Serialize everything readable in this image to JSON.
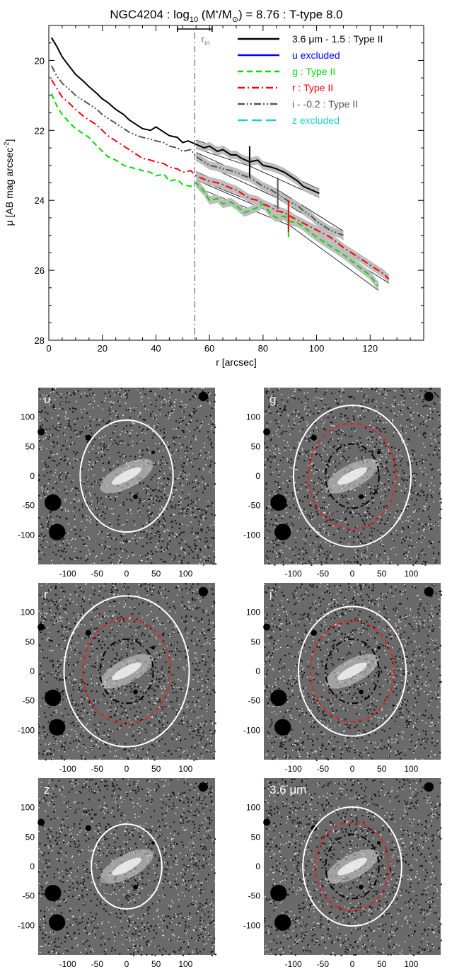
{
  "figure": {
    "title_parts": {
      "pre": "NGC4204 : log",
      "sub": "10",
      "mid": " (M",
      "star": "*",
      "slash": "/M",
      "sun": "⊙",
      "post": ") = 8.76 : T-type 8.0"
    }
  },
  "chart_data": [
    {
      "type": "line",
      "title": "NGC4204 : log10 (M*/M⊙) = 8.76 : T-type 8.0",
      "xlabel": "r [arcsec]",
      "ylabel_parts": {
        "pre": "μ [AB mag arcsec",
        "sup": "-2",
        "post": "]"
      },
      "xlim": [
        0,
        140
      ],
      "ylim": [
        28,
        19
      ],
      "y_inverted": true,
      "xticks": [
        0,
        20,
        40,
        60,
        80,
        100,
        120
      ],
      "yticks": [
        20,
        22,
        24,
        26,
        28
      ],
      "grid": false,
      "legend_position": "top-right",
      "annotations": {
        "r_in_label": "r",
        "r_in_sub": "in",
        "r_in_x": 54.5,
        "r_in_range": [
          48,
          61
        ]
      },
      "series": [
        {
          "name": "3.6 μm - 1.5 : Type II",
          "color": "#000000",
          "dash": "solid",
          "break_x": 75,
          "x": [
            1,
            3,
            5,
            8,
            10,
            13,
            15,
            18,
            20,
            22,
            25,
            28,
            30,
            32,
            35,
            38,
            40,
            43,
            45,
            48,
            50,
            52,
            55,
            58,
            60,
            63,
            65,
            68,
            70,
            72,
            75,
            78,
            80,
            83,
            85,
            88,
            90,
            93,
            95,
            98,
            101
          ],
          "y": [
            19.35,
            19.6,
            19.9,
            20.2,
            20.4,
            20.6,
            20.75,
            20.95,
            21.1,
            21.2,
            21.4,
            21.55,
            21.7,
            21.8,
            21.95,
            22.0,
            21.9,
            22.05,
            22.15,
            22.2,
            22.35,
            22.3,
            22.4,
            22.5,
            22.45,
            22.6,
            22.55,
            22.7,
            22.7,
            22.8,
            22.9,
            22.85,
            23.0,
            23.05,
            23.1,
            23.2,
            23.3,
            23.45,
            23.6,
            23.7,
            23.8
          ]
        },
        {
          "name": "u excluded",
          "color": "#0000ff",
          "dash": "solid",
          "x": [],
          "y": []
        },
        {
          "name": "g : Type II",
          "color": "#00dd00",
          "dash": "dashed",
          "break_x": 89.5,
          "x": [
            1,
            3,
            5,
            8,
            10,
            13,
            15,
            18,
            20,
            22,
            25,
            28,
            30,
            33,
            35,
            38,
            40,
            43,
            45,
            48,
            50,
            53,
            55,
            58,
            60,
            63,
            65,
            68,
            70,
            73,
            75,
            78,
            80,
            83,
            85,
            88,
            90,
            93,
            95,
            100,
            105,
            110,
            115,
            120,
            123
          ],
          "y": [
            20.95,
            21.3,
            21.55,
            21.8,
            21.95,
            22.1,
            22.2,
            22.45,
            22.6,
            22.75,
            22.85,
            23.0,
            23.05,
            23.1,
            23.15,
            23.2,
            23.3,
            23.25,
            23.45,
            23.4,
            23.55,
            23.6,
            23.5,
            23.75,
            24.0,
            23.95,
            24.1,
            24.05,
            24.15,
            24.35,
            24.3,
            24.2,
            24.1,
            24.4,
            24.5,
            24.45,
            24.6,
            24.65,
            24.75,
            25.05,
            25.3,
            25.55,
            25.85,
            26.15,
            26.45
          ]
        },
        {
          "name": "r : Type II",
          "color": "#ff0000",
          "dash": "dashdot",
          "break_x": 89.5,
          "x": [
            1,
            3,
            5,
            8,
            10,
            13,
            15,
            18,
            20,
            22,
            25,
            28,
            30,
            33,
            35,
            38,
            40,
            43,
            45,
            48,
            50,
            53,
            55,
            58,
            60,
            63,
            65,
            68,
            70,
            73,
            75,
            78,
            80,
            83,
            85,
            88,
            90,
            95,
            100,
            105,
            110,
            115,
            120,
            125,
            127
          ],
          "y": [
            20.55,
            20.8,
            21.05,
            21.25,
            21.4,
            21.6,
            21.7,
            21.85,
            22.0,
            22.15,
            22.3,
            22.45,
            22.55,
            22.7,
            22.8,
            22.85,
            22.9,
            22.95,
            23.05,
            23.1,
            23.2,
            23.15,
            23.3,
            23.4,
            23.45,
            23.5,
            23.55,
            23.65,
            23.7,
            23.85,
            23.95,
            24.0,
            24.1,
            24.2,
            24.3,
            24.35,
            24.45,
            24.65,
            24.85,
            25.05,
            25.35,
            25.6,
            25.85,
            26.1,
            26.25
          ]
        },
        {
          "name": "i - -0.2 : Type II",
          "color": "#555555",
          "dash": "dashdotdot",
          "break_x": 85.5,
          "x": [
            1,
            3,
            5,
            8,
            10,
            13,
            15,
            18,
            20,
            22,
            25,
            28,
            30,
            33,
            35,
            38,
            40,
            43,
            45,
            48,
            50,
            53,
            55,
            58,
            60,
            63,
            65,
            68,
            70,
            73,
            75,
            78,
            80,
            83,
            85,
            88,
            90,
            93,
            95,
            98,
            100,
            105,
            110
          ],
          "y": [
            20.15,
            20.45,
            20.65,
            20.85,
            21.0,
            21.15,
            21.25,
            21.4,
            21.55,
            21.65,
            21.8,
            21.95,
            22.05,
            22.15,
            22.2,
            22.25,
            22.3,
            22.35,
            22.45,
            22.5,
            22.6,
            22.55,
            22.75,
            22.9,
            23.0,
            23.05,
            23.1,
            23.15,
            23.2,
            23.3,
            23.35,
            23.5,
            23.6,
            23.7,
            23.8,
            23.95,
            24.05,
            24.15,
            24.3,
            24.45,
            24.6,
            24.85,
            25.0
          ]
        },
        {
          "name": "z excluded",
          "color": "#22cccc",
          "dash": "longdash",
          "x": [],
          "y": []
        }
      ]
    },
    {
      "type": "image-grid",
      "xticks": [
        -100,
        -50,
        0,
        50,
        100
      ],
      "yticks": [
        100,
        50,
        0,
        -50,
        -100
      ],
      "xlim": [
        -150,
        150
      ],
      "ylim": [
        -150,
        150
      ],
      "panels": [
        {
          "label": "u",
          "outer_radius": 95,
          "outer_ratio": 0.83,
          "break_ellipse": false
        },
        {
          "label": "g",
          "outer_radius": 120,
          "outer_ratio": 0.83,
          "break_ellipse": true,
          "break_radius": 89.5,
          "inner_radius": 54.5
        },
        {
          "label": "r",
          "outer_radius": 128,
          "outer_ratio": 0.83,
          "break_ellipse": true,
          "break_radius": 89.5,
          "inner_radius": 54.5
        },
        {
          "label": "i",
          "outer_radius": 110,
          "outer_ratio": 0.83,
          "break_ellipse": true,
          "break_radius": 85.5,
          "inner_radius": 54.5
        },
        {
          "label": "z",
          "outer_radius": 72,
          "outer_ratio": 0.83,
          "break_ellipse": false
        },
        {
          "label": "3.6 μm",
          "outer_radius": 101,
          "outer_ratio": 0.83,
          "break_ellipse": true,
          "break_radius": 75,
          "inner_radius": 54.5
        }
      ]
    }
  ]
}
